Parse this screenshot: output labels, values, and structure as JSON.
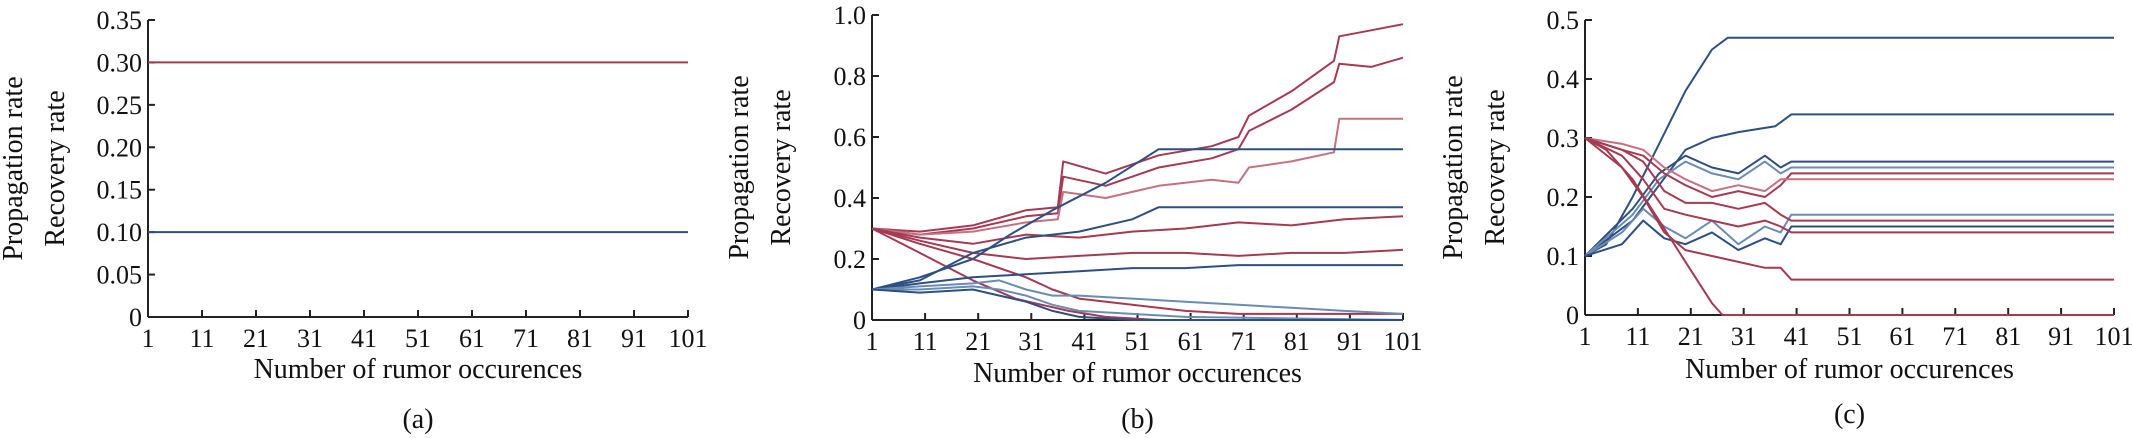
{
  "colors": {
    "red": "#a53a52",
    "red_light": "#c77080",
    "blue": "#2e4f82",
    "blue_light": "#6a8cb4"
  },
  "chart_data": [
    {
      "type": "line",
      "panel_label": "(a)",
      "xlabel": "Number of rumor occurences",
      "ylabel_lines": [
        "Propagation rate",
        "Recovery rate"
      ],
      "xlim": [
        1,
        101
      ],
      "ylim": [
        0,
        0.35
      ],
      "xticks": [
        "1",
        "11",
        "21",
        "31",
        "41",
        "51",
        "61",
        "71",
        "81",
        "91",
        "101"
      ],
      "yticks": [
        "0",
        "0.05",
        "0.10",
        "0.15",
        "0.20",
        "0.25",
        "0.30",
        "0.35"
      ],
      "series": [
        {
          "color": "red",
          "x": [
            1,
            101
          ],
          "y": [
            0.3,
            0.3
          ]
        },
        {
          "color": "blue",
          "x": [
            1,
            101
          ],
          "y": [
            0.1,
            0.1
          ]
        }
      ]
    },
    {
      "type": "line",
      "panel_label": "(b)",
      "xlabel": "Number of rumor occurences",
      "ylabel_lines": [
        "Propagation rate",
        "Recovery rate"
      ],
      "xlim": [
        1,
        101
      ],
      "ylim": [
        0,
        1.0
      ],
      "xticks": [
        "1",
        "11",
        "21",
        "31",
        "41",
        "51",
        "61",
        "71",
        "81",
        "91",
        "101"
      ],
      "yticks": [
        "0",
        "0.2",
        "0.4",
        "0.6",
        "0.8",
        "1.0"
      ],
      "series": [
        {
          "color": "red",
          "x": [
            1,
            10,
            20,
            30,
            36,
            37,
            45,
            55,
            65,
            70,
            72,
            80,
            88,
            89,
            95,
            101
          ],
          "y": [
            0.3,
            0.29,
            0.31,
            0.36,
            0.37,
            0.52,
            0.48,
            0.54,
            0.57,
            0.6,
            0.67,
            0.75,
            0.85,
            0.93,
            0.95,
            0.97
          ]
        },
        {
          "color": "red",
          "x": [
            1,
            10,
            20,
            30,
            36,
            37,
            45,
            55,
            65,
            70,
            72,
            80,
            88,
            89,
            95,
            101
          ],
          "y": [
            0.3,
            0.28,
            0.3,
            0.34,
            0.35,
            0.47,
            0.44,
            0.5,
            0.53,
            0.56,
            0.62,
            0.69,
            0.78,
            0.84,
            0.83,
            0.86
          ]
        },
        {
          "color": "red_light",
          "x": [
            1,
            10,
            20,
            30,
            36,
            37,
            45,
            55,
            65,
            70,
            72,
            80,
            88,
            89,
            95,
            101
          ],
          "y": [
            0.3,
            0.28,
            0.29,
            0.32,
            0.33,
            0.42,
            0.4,
            0.44,
            0.46,
            0.45,
            0.5,
            0.52,
            0.55,
            0.66,
            0.66,
            0.66
          ]
        },
        {
          "color": "red",
          "x": [
            1,
            10,
            20,
            30,
            40,
            50,
            60,
            70,
            80,
            90,
            101
          ],
          "y": [
            0.3,
            0.27,
            0.25,
            0.28,
            0.27,
            0.29,
            0.3,
            0.32,
            0.31,
            0.33,
            0.34
          ]
        },
        {
          "color": "red",
          "x": [
            1,
            10,
            20,
            30,
            40,
            50,
            60,
            70,
            80,
            90,
            101
          ],
          "y": [
            0.3,
            0.26,
            0.22,
            0.2,
            0.21,
            0.22,
            0.22,
            0.21,
            0.22,
            0.22,
            0.23
          ]
        },
        {
          "color": "red",
          "x": [
            1,
            10,
            20,
            30,
            35,
            40,
            50,
            60,
            70,
            80,
            90,
            101
          ],
          "y": [
            0.3,
            0.25,
            0.2,
            0.14,
            0.1,
            0.07,
            0.05,
            0.03,
            0.02,
            0.02,
            0.02,
            0.02
          ]
        },
        {
          "color": "red",
          "x": [
            1,
            10,
            20,
            28,
            33,
            38,
            45,
            55,
            65,
            101
          ],
          "y": [
            0.3,
            0.22,
            0.13,
            0.07,
            0.05,
            0.03,
            0.01,
            0.0,
            0.0,
            0.0
          ]
        },
        {
          "color": "blue",
          "x": [
            1,
            10,
            20,
            27,
            35,
            45,
            55,
            101
          ],
          "y": [
            0.1,
            0.14,
            0.2,
            0.28,
            0.36,
            0.45,
            0.56,
            0.56
          ]
        },
        {
          "color": "blue",
          "x": [
            1,
            10,
            20,
            30,
            40,
            50,
            55,
            60,
            101
          ],
          "y": [
            0.1,
            0.13,
            0.22,
            0.27,
            0.29,
            0.33,
            0.37,
            0.37,
            0.37
          ]
        },
        {
          "color": "blue",
          "x": [
            1,
            10,
            20,
            30,
            40,
            50,
            60,
            70,
            80,
            90,
            101
          ],
          "y": [
            0.1,
            0.12,
            0.14,
            0.15,
            0.16,
            0.17,
            0.17,
            0.18,
            0.18,
            0.18,
            0.18
          ]
        },
        {
          "color": "blue_light",
          "x": [
            1,
            10,
            20,
            25,
            30,
            35,
            40,
            50,
            60,
            70,
            80,
            90,
            101
          ],
          "y": [
            0.1,
            0.11,
            0.12,
            0.13,
            0.1,
            0.08,
            0.08,
            0.07,
            0.06,
            0.05,
            0.04,
            0.03,
            0.02
          ]
        },
        {
          "color": "blue_light",
          "x": [
            1,
            10,
            20,
            25,
            30,
            35,
            40,
            50,
            60,
            101
          ],
          "y": [
            0.1,
            0.1,
            0.11,
            0.1,
            0.08,
            0.05,
            0.03,
            0.02,
            0.01,
            0.0
          ]
        },
        {
          "color": "blue",
          "x": [
            1,
            10,
            20,
            25,
            30,
            35,
            40,
            50,
            101
          ],
          "y": [
            0.1,
            0.09,
            0.1,
            0.08,
            0.06,
            0.03,
            0.01,
            0.0,
            0.0
          ]
        }
      ]
    },
    {
      "type": "line",
      "panel_label": "(c)",
      "xlabel": "Number of rumor occurences",
      "ylabel_lines": [
        "Propagation rate",
        "Recovery rate"
      ],
      "xlim": [
        1,
        101
      ],
      "ylim": [
        0,
        0.5
      ],
      "xticks": [
        "1",
        "11",
        "21",
        "31",
        "41",
        "51",
        "61",
        "71",
        "81",
        "91",
        "101"
      ],
      "yticks": [
        "0",
        "0.1",
        "0.2",
        "0.3",
        "0.4",
        "0.5"
      ],
      "series": [
        {
          "color": "blue",
          "x": [
            1,
            5,
            10,
            15,
            20,
            25,
            28,
            101
          ],
          "y": [
            0.1,
            0.12,
            0.2,
            0.29,
            0.38,
            0.45,
            0.47,
            0.47
          ]
        },
        {
          "color": "blue",
          "x": [
            1,
            10,
            15,
            20,
            25,
            30,
            37,
            40,
            101
          ],
          "y": [
            0.1,
            0.16,
            0.22,
            0.28,
            0.3,
            0.31,
            0.32,
            0.34,
            0.34
          ]
        },
        {
          "color": "blue",
          "x": [
            1,
            10,
            15,
            20,
            25,
            30,
            35,
            38,
            40,
            101
          ],
          "y": [
            0.1,
            0.18,
            0.24,
            0.27,
            0.25,
            0.24,
            0.27,
            0.25,
            0.26,
            0.26
          ]
        },
        {
          "color": "blue_light",
          "x": [
            1,
            10,
            15,
            20,
            25,
            30,
            35,
            38,
            40,
            101
          ],
          "y": [
            0.1,
            0.17,
            0.23,
            0.26,
            0.24,
            0.23,
            0.26,
            0.24,
            0.25,
            0.25
          ]
        },
        {
          "color": "blue_light",
          "x": [
            1,
            8,
            12,
            16,
            20,
            25,
            30,
            35,
            38,
            40,
            101
          ],
          "y": [
            0.1,
            0.14,
            0.18,
            0.15,
            0.13,
            0.16,
            0.12,
            0.15,
            0.14,
            0.17,
            0.17
          ]
        },
        {
          "color": "blue",
          "x": [
            1,
            8,
            12,
            16,
            20,
            25,
            30,
            35,
            38,
            40,
            101
          ],
          "y": [
            0.1,
            0.12,
            0.16,
            0.13,
            0.12,
            0.14,
            0.11,
            0.13,
            0.12,
            0.15,
            0.15
          ]
        },
        {
          "color": "red",
          "x": [
            1,
            8,
            12,
            16,
            20,
            25,
            30,
            35,
            38,
            40,
            101
          ],
          "y": [
            0.3,
            0.28,
            0.27,
            0.24,
            0.22,
            0.2,
            0.21,
            0.2,
            0.22,
            0.24,
            0.24
          ]
        },
        {
          "color": "red_light",
          "x": [
            1,
            8,
            12,
            16,
            20,
            25,
            30,
            35,
            38,
            40,
            101
          ],
          "y": [
            0.3,
            0.29,
            0.28,
            0.25,
            0.23,
            0.21,
            0.22,
            0.21,
            0.23,
            0.23,
            0.23
          ]
        },
        {
          "color": "red",
          "x": [
            1,
            8,
            12,
            16,
            20,
            25,
            30,
            35,
            38,
            40,
            101
          ],
          "y": [
            0.3,
            0.28,
            0.26,
            0.21,
            0.19,
            0.19,
            0.18,
            0.19,
            0.17,
            0.16,
            0.16
          ]
        },
        {
          "color": "red",
          "x": [
            1,
            8,
            12,
            16,
            20,
            25,
            30,
            35,
            38,
            40,
            101
          ],
          "y": [
            0.3,
            0.27,
            0.23,
            0.18,
            0.17,
            0.16,
            0.15,
            0.16,
            0.15,
            0.14,
            0.14
          ]
        },
        {
          "color": "red",
          "x": [
            1,
            8,
            12,
            16,
            20,
            25,
            30,
            35,
            38,
            40,
            101
          ],
          "y": [
            0.3,
            0.25,
            0.2,
            0.14,
            0.11,
            0.1,
            0.09,
            0.08,
            0.08,
            0.06,
            0.06
          ]
        },
        {
          "color": "red",
          "x": [
            1,
            5,
            10,
            15,
            20,
            25,
            27,
            101
          ],
          "y": [
            0.3,
            0.28,
            0.23,
            0.16,
            0.09,
            0.02,
            0.0,
            0.0
          ]
        }
      ]
    }
  ]
}
